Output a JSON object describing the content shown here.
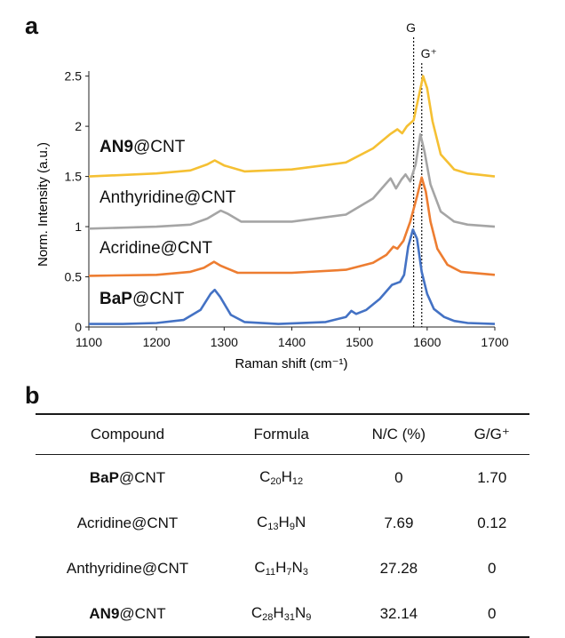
{
  "panel_a_label": "a",
  "panel_b_label": "b",
  "chart_data": {
    "type": "line",
    "xlabel": "Raman shift (cm⁻¹)",
    "ylabel": "Norm. Intensity (a.u.)",
    "xlim": [
      1100,
      1700
    ],
    "ylim": [
      0,
      2.5
    ],
    "xticks": [
      1100,
      1200,
      1300,
      1400,
      1500,
      1600,
      1700
    ],
    "yticks": [
      {
        "value": 0,
        "label": "0"
      },
      {
        "value": 0.5,
        "label": "0.5"
      },
      {
        "value": 1,
        "label": "1"
      },
      {
        "value": 1.5,
        "label": "1.5"
      },
      {
        "value": 2,
        "label": "2"
      },
      {
        "value": 2.5,
        "label": "2.5"
      }
    ],
    "reference_lines": [
      {
        "name": "G",
        "x": 1580
      },
      {
        "name": "G⁺",
        "x": 1592
      }
    ],
    "series": [
      {
        "key": "bap",
        "bold": "BaP",
        "rest": "@CNT",
        "color": "#4472c4",
        "offset": 0,
        "points": [
          [
            1100,
            0.03
          ],
          [
            1150,
            0.03
          ],
          [
            1200,
            0.04
          ],
          [
            1240,
            0.07
          ],
          [
            1265,
            0.17
          ],
          [
            1280,
            0.33
          ],
          [
            1286,
            0.37
          ],
          [
            1294,
            0.3
          ],
          [
            1310,
            0.12
          ],
          [
            1330,
            0.05
          ],
          [
            1380,
            0.03
          ],
          [
            1450,
            0.05
          ],
          [
            1480,
            0.1
          ],
          [
            1488,
            0.16
          ],
          [
            1495,
            0.13
          ],
          [
            1510,
            0.17
          ],
          [
            1530,
            0.28
          ],
          [
            1548,
            0.42
          ],
          [
            1560,
            0.45
          ],
          [
            1566,
            0.52
          ],
          [
            1572,
            0.8
          ],
          [
            1579,
            0.97
          ],
          [
            1585,
            0.88
          ],
          [
            1592,
            0.55
          ],
          [
            1600,
            0.33
          ],
          [
            1610,
            0.18
          ],
          [
            1625,
            0.1
          ],
          [
            1640,
            0.06
          ],
          [
            1660,
            0.04
          ],
          [
            1700,
            0.03
          ]
        ]
      },
      {
        "key": "acridine",
        "bold": "",
        "rest": "Acridine@CNT",
        "color": "#ed7d31",
        "offset": 0.5,
        "points": [
          [
            1100,
            0.01
          ],
          [
            1200,
            0.02
          ],
          [
            1250,
            0.05
          ],
          [
            1270,
            0.09
          ],
          [
            1285,
            0.15
          ],
          [
            1295,
            0.11
          ],
          [
            1320,
            0.04
          ],
          [
            1400,
            0.04
          ],
          [
            1480,
            0.07
          ],
          [
            1520,
            0.14
          ],
          [
            1540,
            0.22
          ],
          [
            1550,
            0.3
          ],
          [
            1556,
            0.28
          ],
          [
            1565,
            0.36
          ],
          [
            1575,
            0.55
          ],
          [
            1585,
            0.8
          ],
          [
            1592,
            0.99
          ],
          [
            1598,
            0.85
          ],
          [
            1605,
            0.55
          ],
          [
            1615,
            0.28
          ],
          [
            1630,
            0.12
          ],
          [
            1650,
            0.05
          ],
          [
            1700,
            0.02
          ]
        ]
      },
      {
        "key": "anthyridine",
        "bold": "",
        "rest": "Anthyridine@CNT",
        "color": "#a5a5a5",
        "offset": 1,
        "points": [
          [
            1100,
            -0.02
          ],
          [
            1200,
            0.0
          ],
          [
            1250,
            0.02
          ],
          [
            1275,
            0.08
          ],
          [
            1295,
            0.16
          ],
          [
            1305,
            0.13
          ],
          [
            1325,
            0.05
          ],
          [
            1400,
            0.05
          ],
          [
            1480,
            0.12
          ],
          [
            1520,
            0.28
          ],
          [
            1538,
            0.42
          ],
          [
            1546,
            0.48
          ],
          [
            1554,
            0.38
          ],
          [
            1562,
            0.47
          ],
          [
            1568,
            0.52
          ],
          [
            1575,
            0.45
          ],
          [
            1583,
            0.62
          ],
          [
            1590,
            0.92
          ],
          [
            1596,
            0.75
          ],
          [
            1605,
            0.42
          ],
          [
            1620,
            0.15
          ],
          [
            1640,
            0.05
          ],
          [
            1660,
            0.02
          ],
          [
            1700,
            0.0
          ]
        ]
      },
      {
        "key": "an9",
        "bold": "AN9",
        "rest": "@CNT",
        "color": "#f5c033",
        "offset": 1.5,
        "points": [
          [
            1100,
            0.0
          ],
          [
            1200,
            0.03
          ],
          [
            1250,
            0.06
          ],
          [
            1275,
            0.12
          ],
          [
            1286,
            0.16
          ],
          [
            1300,
            0.11
          ],
          [
            1330,
            0.05
          ],
          [
            1400,
            0.07
          ],
          [
            1480,
            0.14
          ],
          [
            1520,
            0.28
          ],
          [
            1545,
            0.42
          ],
          [
            1556,
            0.47
          ],
          [
            1563,
            0.43
          ],
          [
            1570,
            0.5
          ],
          [
            1580,
            0.56
          ],
          [
            1586,
            0.75
          ],
          [
            1594,
            1.0
          ],
          [
            1600,
            0.88
          ],
          [
            1608,
            0.55
          ],
          [
            1620,
            0.22
          ],
          [
            1640,
            0.07
          ],
          [
            1660,
            0.03
          ],
          [
            1700,
            0.0
          ]
        ]
      }
    ]
  },
  "table": {
    "headers": [
      "Compound",
      "Formula",
      "N/C (%)",
      "G/G⁺"
    ],
    "rows": [
      {
        "compound_bold": "BaP",
        "compound_rest": "@CNT",
        "formula": [
          [
            "C",
            "20"
          ],
          [
            "H",
            "12"
          ]
        ],
        "nc": "0",
        "gg": "1.70"
      },
      {
        "compound_bold": "",
        "compound_rest": "Acridine@CNT",
        "formula": [
          [
            "C",
            "13"
          ],
          [
            "H",
            "9"
          ],
          [
            "N",
            ""
          ]
        ],
        "nc": "7.69",
        "gg": "0.12"
      },
      {
        "compound_bold": "",
        "compound_rest": "Anthyridine@CNT",
        "formula": [
          [
            "C",
            "11"
          ],
          [
            "H",
            "7"
          ],
          [
            "N",
            "3"
          ]
        ],
        "nc": "27.28",
        "gg": "0"
      },
      {
        "compound_bold": "AN9",
        "compound_rest": "@CNT",
        "formula": [
          [
            "C",
            "28"
          ],
          [
            "H",
            "31"
          ],
          [
            "N",
            "9"
          ]
        ],
        "nc": "32.14",
        "gg": "0"
      }
    ]
  }
}
